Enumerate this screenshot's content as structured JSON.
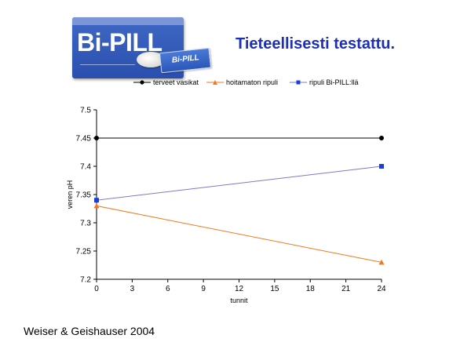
{
  "logo": {
    "brand": "Bi-PILL",
    "blister_text": "Bi-PILL"
  },
  "title": "Tieteellisesti testattu.",
  "source": "Weiser & Geishauser 2004",
  "colors": {
    "title": "#1d2fb8",
    "series_healthy": "#000000",
    "series_untreated": "#f07a1e",
    "series_bipill": "#1e3cd8",
    "line_bipill": "#7f78cc"
  },
  "chart_data": {
    "type": "line",
    "xlabel": "tunnit",
    "ylabel": "veren pH",
    "x": [
      0,
      24
    ],
    "xlim": [
      0,
      24
    ],
    "xticks": [
      0,
      3,
      6,
      9,
      12,
      15,
      18,
      21,
      24
    ],
    "ylim": [
      7.2,
      7.5
    ],
    "yticks": [
      "7.2",
      "7.25",
      "7.3",
      "7.35",
      "7.4",
      "7.45",
      "7.5"
    ],
    "grid": false,
    "legend_position": "top",
    "series": [
      {
        "name": "terveet vasikat",
        "values": [
          7.45,
          7.45
        ],
        "marker": "circle",
        "color": "#000000",
        "line_color": "#000000"
      },
      {
        "name": "hoitamaton ripuli",
        "values": [
          7.33,
          7.23
        ],
        "marker": "triangle",
        "color": "#f07a1e",
        "line_color": "#f07a1e"
      },
      {
        "name": "ripuli Bi-PILL:llä",
        "values": [
          7.34,
          7.4
        ],
        "marker": "square",
        "color": "#1e3cd8",
        "line_color": "#7f78cc"
      }
    ]
  }
}
